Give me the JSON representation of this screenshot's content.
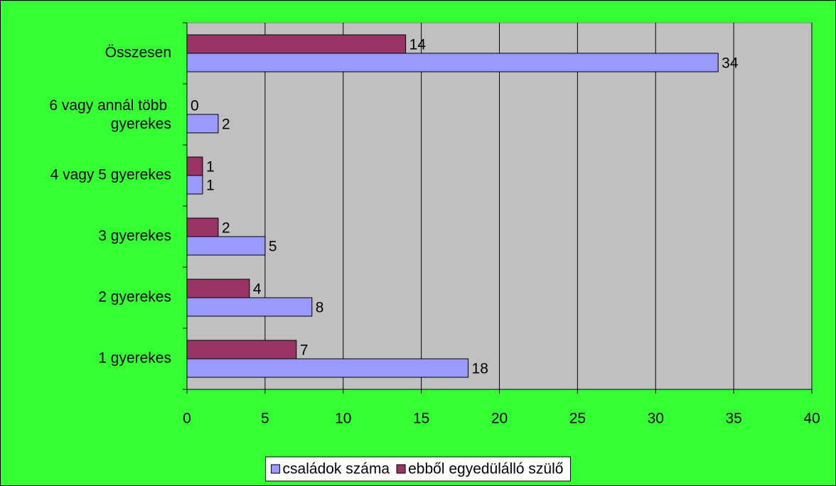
{
  "chart_data": {
    "type": "hbar",
    "categories": [
      "1 gyerekes",
      "2 gyerekes",
      "3 gyerekes",
      "4 vagy 5 gyerekes",
      "6 vagy annál több gyerekes",
      "Összesen"
    ],
    "series": [
      {
        "name": "családok száma",
        "color": "#9999ff",
        "values": [
          18,
          8,
          5,
          1,
          2,
          34
        ]
      },
      {
        "name": "ebből egyedülálló szülő",
        "color": "#993366",
        "values": [
          7,
          4,
          2,
          1,
          0,
          14
        ]
      }
    ],
    "xlim": [
      0,
      40
    ],
    "xticks": [
      0,
      5,
      10,
      15,
      20,
      25,
      30,
      35,
      40
    ],
    "grid": true,
    "legend": "bottom",
    "background": "#33ff33",
    "plot_background": "#c0c0c0"
  }
}
